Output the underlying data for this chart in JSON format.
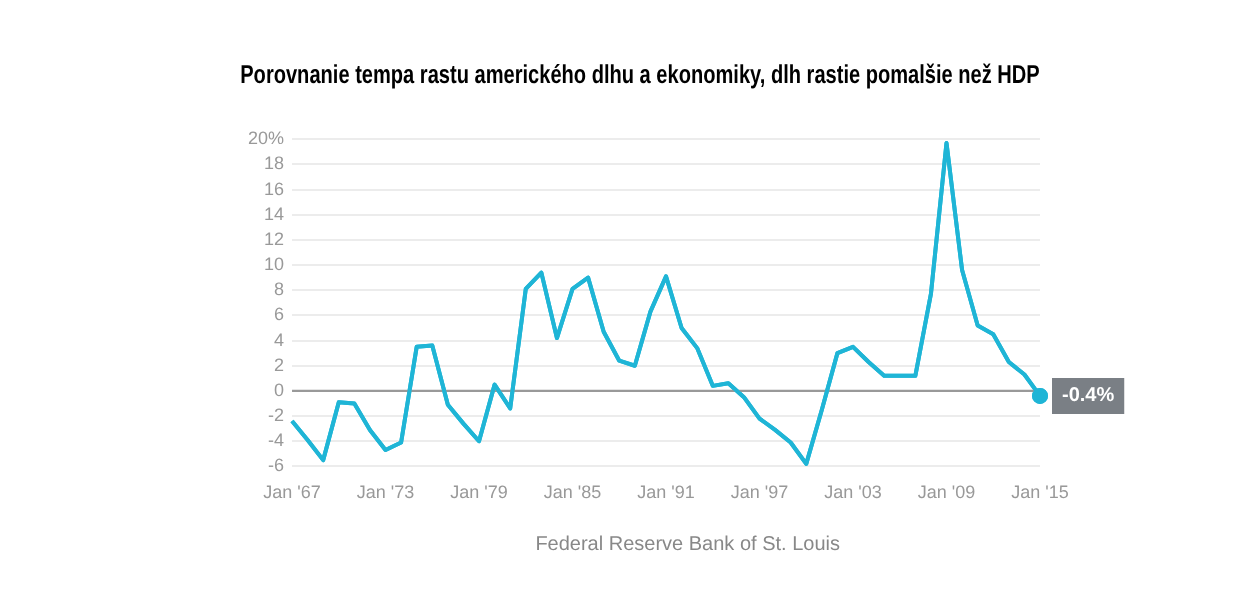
{
  "chart_data": {
    "type": "line",
    "title": "Porovnanie tempa rastu amerického dlhu a ekonomiky, dlh rastie pomalšie než HDP",
    "categories": [
      "Jan '67",
      null,
      null,
      null,
      null,
      null,
      "Jan '73",
      null,
      null,
      null,
      null,
      null,
      "Jan '79",
      null,
      null,
      null,
      null,
      null,
      "Jan '85",
      null,
      null,
      null,
      null,
      null,
      "Jan '91",
      null,
      null,
      null,
      null,
      null,
      "Jan '97",
      null,
      null,
      null,
      null,
      null,
      "Jan '03",
      null,
      null,
      null,
      null,
      null,
      "Jan '09",
      null,
      null,
      null,
      null,
      null,
      "Jan '15"
    ],
    "series": [
      {
        "color": "#1fb5d6",
        "values": [
          -2.4,
          -3.9,
          -5.5,
          -0.9,
          -1.0,
          -3.1,
          -4.7,
          -4.1,
          3.5,
          3.6,
          -1.1,
          -2.6,
          -4.0,
          0.5,
          -1.4,
          8.1,
          9.4,
          4.2,
          8.1,
          9.0,
          4.7,
          2.4,
          2.0,
          6.3,
          9.1,
          5.0,
          3.4,
          0.4,
          0.6,
          -0.5,
          -2.2,
          -3.1,
          -4.1,
          -5.8,
          -1.5,
          3.0,
          3.5,
          2.3,
          1.2,
          1.2,
          1.2,
          7.7,
          19.7,
          9.6,
          5.2,
          4.5,
          2.3,
          1.3,
          -0.4
        ],
        "value_labels": [
          null,
          null,
          null,
          null,
          null,
          null,
          null,
          null,
          null,
          null,
          null,
          null,
          null,
          null,
          null,
          null,
          null,
          null,
          null,
          null,
          null,
          null,
          null,
          null,
          null,
          null,
          null,
          null,
          null,
          null,
          null,
          null,
          null,
          null,
          null,
          null,
          null,
          null,
          null,
          null,
          null,
          null,
          null,
          null,
          null,
          null,
          null,
          null,
          "-0.4%"
        ]
      }
    ],
    "ylim": [
      -6,
      20
    ],
    "yticks": [
      -6,
      -4,
      -2,
      0,
      2,
      4,
      6,
      8,
      10,
      12,
      14,
      16,
      18,
      {
        "value": 20,
        "label": "20%"
      }
    ],
    "grid": "y",
    "legend": false,
    "marker": "none",
    "line_style": "solid",
    "ref_lines": [
      {
        "axis": "y",
        "value": 0,
        "color": "#999999"
      }
    ],
    "annotations": [
      "Federal Reserve Bank of St. Louis"
    ]
  }
}
